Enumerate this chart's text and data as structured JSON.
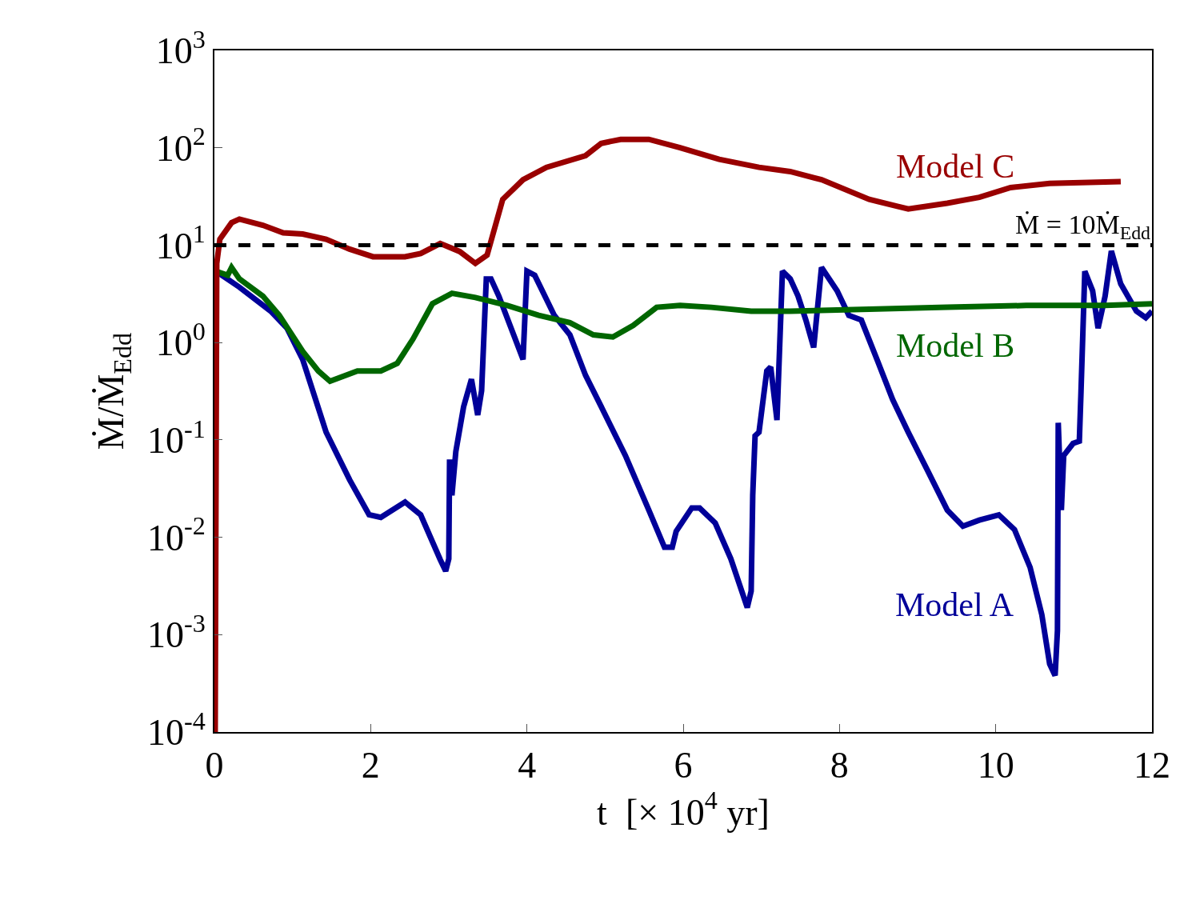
{
  "chart_data": {
    "type": "line",
    "xlabel": "t  [× 10$^{4}$ yr]",
    "ylabel": "Ṁ/Ṁ$_{Edd}$",
    "log": "y",
    "xlim": [
      0,
      12
    ],
    "xticks": [
      0,
      2,
      4,
      6,
      8,
      10,
      12
    ],
    "ylim": [
      0.0001,
      1000
    ],
    "yticks": [
      {
        "value": 0.0001,
        "label": "10$^{-4}$"
      },
      {
        "value": 0.001,
        "label": "10$^{-3}$"
      },
      {
        "value": 0.01,
        "label": "10$^{-2}$"
      },
      {
        "value": 0.1,
        "label": "10$^{-1}$"
      },
      {
        "value": 1,
        "label": "10$^{0}$"
      },
      {
        "value": 10,
        "label": "10$^{1}$"
      },
      {
        "value": 100,
        "label": "10$^{2}$"
      },
      {
        "value": 1000,
        "label": "10$^{3}$"
      }
    ],
    "legend": false,
    "line_style": "solid",
    "marker": "none",
    "ref_lines": [
      {
        "axis": "y",
        "value": 10,
        "label": "Ṁ = 10Ṁ$_{Edd}$",
        "color": "#000000",
        "line_style": "dashed"
      }
    ],
    "series": [
      {
        "name": "Model A",
        "color": "#000099",
        "x": [
          0.02,
          0.32,
          0.72,
          0.93,
          1.13,
          1.43,
          1.73,
          1.98,
          2.13,
          2.44,
          2.64,
          2.89,
          2.96,
          3.0,
          3.01,
          3.04,
          3.09,
          3.19,
          3.29,
          3.37,
          3.42,
          3.48,
          3.54,
          3.64,
          3.83,
          3.95,
          4.0,
          4.1,
          4.35,
          4.55,
          4.75,
          4.95,
          5.26,
          5.56,
          5.76,
          5.86,
          5.91,
          6.11,
          6.21,
          6.41,
          6.61,
          6.82,
          6.87,
          6.89,
          6.92,
          6.97,
          7.07,
          7.12,
          7.2,
          7.27,
          7.37,
          7.47,
          7.57,
          7.67,
          7.77,
          7.97,
          8.12,
          8.28,
          8.48,
          8.68,
          8.88,
          9.13,
          9.38,
          9.58,
          9.79,
          10.04,
          10.24,
          10.44,
          10.59,
          10.69,
          10.76,
          10.79,
          10.8,
          10.84,
          10.87,
          10.99,
          11.07,
          11.09,
          11.14,
          11.24,
          11.31,
          11.4,
          11.48,
          11.6,
          11.8,
          11.92,
          12.0
        ],
        "values": [
          5.4,
          3.7,
          2.1,
          1.4,
          0.67,
          0.12,
          0.039,
          0.017,
          0.016,
          0.023,
          0.017,
          0.0059,
          0.0045,
          0.006,
          0.063,
          0.027,
          0.076,
          0.22,
          0.42,
          0.18,
          0.32,
          4.5,
          4.5,
          3.0,
          1.2,
          0.67,
          5.4,
          4.9,
          1.9,
          1.2,
          0.46,
          0.22,
          0.069,
          0.019,
          0.0079,
          0.0079,
          0.0115,
          0.02,
          0.02,
          0.014,
          0.006,
          0.0019,
          0.0028,
          0.027,
          0.11,
          0.12,
          0.51,
          0.56,
          0.16,
          5.4,
          4.5,
          3.0,
          1.7,
          0.89,
          5.9,
          3.4,
          1.9,
          1.7,
          0.67,
          0.26,
          0.12,
          0.048,
          0.019,
          0.013,
          0.015,
          0.017,
          0.012,
          0.0049,
          0.0016,
          0.0005,
          0.00038,
          0.0011,
          0.15,
          0.019,
          0.069,
          0.092,
          0.097,
          0.29,
          5.4,
          3.4,
          1.4,
          3.0,
          8.7,
          4.0,
          2.1,
          1.8,
          2.1
        ]
      },
      {
        "name": "Model B",
        "color": "#006600",
        "x": [
          0.02,
          0.17,
          0.22,
          0.32,
          0.62,
          0.83,
          1.13,
          1.33,
          1.48,
          1.83,
          2.13,
          2.34,
          2.54,
          2.79,
          3.04,
          3.34,
          3.75,
          4.15,
          4.55,
          4.85,
          5.1,
          5.36,
          5.66,
          5.96,
          6.36,
          6.87,
          7.37,
          8.38,
          9.38,
          10.39,
          11.4,
          12.0
        ],
        "values": [
          5.4,
          4.9,
          5.9,
          4.5,
          3.0,
          1.9,
          0.81,
          0.51,
          0.4,
          0.51,
          0.51,
          0.61,
          1.08,
          2.5,
          3.2,
          2.9,
          2.4,
          1.9,
          1.6,
          1.2,
          1.14,
          1.5,
          2.3,
          2.4,
          2.3,
          2.1,
          2.1,
          2.2,
          2.3,
          2.4,
          2.4,
          2.5
        ]
      },
      {
        "name": "Model C",
        "color": "#990000",
        "x": [
          0.01,
          0.03,
          0.07,
          0.22,
          0.32,
          0.62,
          0.88,
          1.13,
          1.43,
          1.73,
          2.03,
          2.44,
          2.64,
          2.89,
          3.14,
          3.34,
          3.49,
          3.69,
          3.95,
          4.25,
          4.75,
          4.95,
          5.2,
          5.56,
          5.96,
          6.46,
          6.97,
          7.37,
          7.77,
          8.38,
          8.88,
          9.38,
          9.79,
          10.19,
          10.69,
          11.6
        ],
        "values": [
          0.0001,
          6.5,
          11.5,
          17,
          18.5,
          16,
          13.4,
          13,
          11.5,
          9.1,
          7.6,
          7.6,
          8.2,
          10.4,
          8.6,
          6.5,
          7.9,
          29.5,
          47,
          63,
          83,
          111,
          122,
          122,
          100,
          76,
          63,
          57,
          47,
          29.5,
          23.5,
          27,
          31,
          39,
          43,
          45
        ]
      }
    ]
  }
}
